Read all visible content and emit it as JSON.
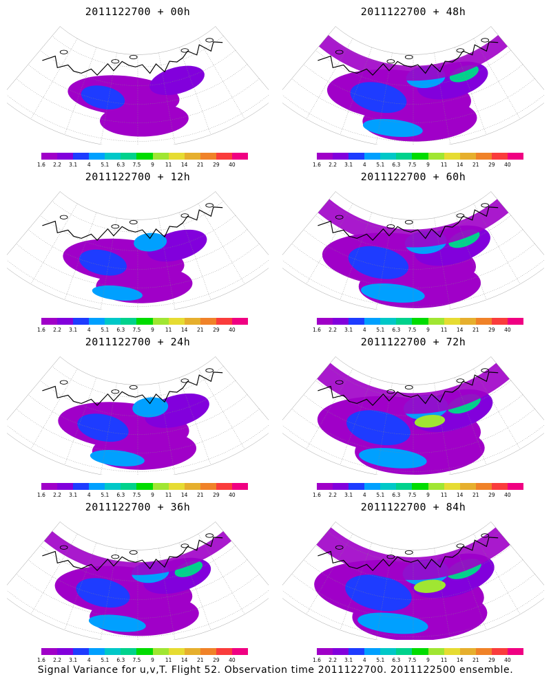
{
  "panels": [
    {
      "title": "2011122700 + 00h",
      "intensity": 0.2
    },
    {
      "title": "2011122700 + 48h",
      "intensity": 0.6
    },
    {
      "title": "2011122700 + 12h",
      "intensity": 0.32
    },
    {
      "title": "2011122700 + 60h",
      "intensity": 0.72
    },
    {
      "title": "2011122700 + 24h",
      "intensity": 0.44
    },
    {
      "title": "2011122700 + 72h",
      "intensity": 0.84
    },
    {
      "title": "2011122700 + 36h",
      "intensity": 0.52
    },
    {
      "title": "2011122700 + 84h",
      "intensity": 0.92
    }
  ],
  "colorbar": {
    "labels": [
      "1.6",
      "2.2",
      "3.1",
      "4",
      "5.1",
      "6.3",
      "7.5",
      "9",
      "11",
      "14",
      "21",
      "29",
      "40"
    ],
    "colors": [
      "#a000c8",
      "#8200dc",
      "#1e3cff",
      "#00a0ff",
      "#00c8c8",
      "#00d28c",
      "#00dc00",
      "#a0e632",
      "#e6dc32",
      "#e6af2d",
      "#f08228",
      "#fa3c3c",
      "#f00082"
    ]
  },
  "caption": "Signal Variance for u,v,T. Flight 52. Observation time 2011122700. 2011122500 ensemble."
}
